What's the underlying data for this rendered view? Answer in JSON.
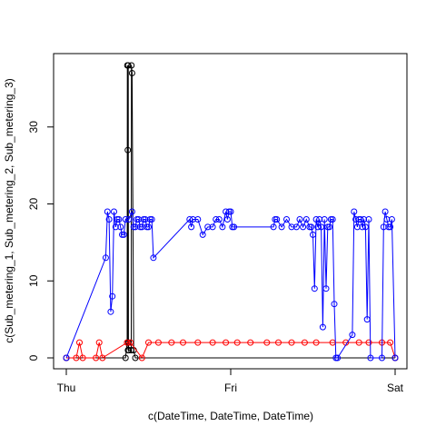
{
  "chart_data": {
    "type": "line",
    "title": "",
    "xlabel": "c(DateTime, DateTime, DateTime)",
    "ylabel": "c(Sub_metering_1, Sub_metering_2, Sub_metering_3)",
    "xlim": [
      0,
      2
    ],
    "ylim": [
      0,
      38
    ],
    "x_ticks": [
      {
        "value": 0,
        "label": "Thu"
      },
      {
        "value": 1,
        "label": "Fri"
      },
      {
        "value": 2,
        "label": "Sat"
      }
    ],
    "y_ticks": [
      0,
      10,
      20,
      30
    ],
    "grid": false,
    "legend": "none",
    "point_marker": "open-circle",
    "series": [
      {
        "name": "Sub_metering_1",
        "color": "#000000",
        "x": [
          0,
          0.36,
          0.37,
          0.371,
          0.374,
          0.375,
          0.377,
          0.378,
          0.38,
          0.395,
          0.396,
          0.4,
          0.41,
          0.42,
          2
        ],
        "y": [
          0,
          0,
          2,
          38,
          27,
          1,
          38,
          2,
          1,
          1,
          38,
          37,
          1,
          0,
          0
        ]
      },
      {
        "name": "Sub_metering_2",
        "color": "#ff0000",
        "x": [
          0,
          0.06,
          0.08,
          0.1,
          0.18,
          0.2,
          0.22,
          0.37,
          0.39,
          0.46,
          0.5,
          0.56,
          0.64,
          0.71,
          0.8,
          0.89,
          0.97,
          1.04,
          1.12,
          1.22,
          1.29,
          1.37,
          1.45,
          1.52,
          1.62,
          1.7,
          1.78,
          1.84,
          1.92,
          1.97,
          2
        ],
        "y": [
          0,
          0,
          2,
          0,
          0,
          2,
          0,
          2,
          2,
          0,
          2,
          2,
          2,
          2,
          2,
          2,
          2,
          2,
          2,
          2,
          2,
          2,
          2,
          2,
          2,
          2,
          2,
          2,
          2,
          2,
          0
        ]
      },
      {
        "name": "Sub_metering_3",
        "color": "#0000ff",
        "x": [
          0,
          0.24,
          0.25,
          0.26,
          0.27,
          0.28,
          0.29,
          0.3,
          0.31,
          0.32,
          0.33,
          0.34,
          0.35,
          0.36,
          0.38,
          0.4,
          0.41,
          0.42,
          0.43,
          0.44,
          0.45,
          0.46,
          0.47,
          0.48,
          0.49,
          0.5,
          0.51,
          0.52,
          0.53,
          0.75,
          0.76,
          0.77,
          0.8,
          0.83,
          0.86,
          0.89,
          0.91,
          0.93,
          0.95,
          0.97,
          0.98,
          0.99,
          1.0,
          1.01,
          1.02,
          1.26,
          1.27,
          1.28,
          1.31,
          1.34,
          1.37,
          1.4,
          1.42,
          1.44,
          1.46,
          1.48,
          1.49,
          1.5,
          1.51,
          1.52,
          1.53,
          1.54,
          1.55,
          1.56,
          1.57,
          1.58,
          1.59,
          1.6,
          1.61,
          1.62,
          1.63,
          1.64,
          1.65,
          1.74,
          1.75,
          1.76,
          1.77,
          1.78,
          1.79,
          1.8,
          1.81,
          1.82,
          1.83,
          1.84,
          1.85,
          1.92,
          1.93,
          1.94,
          1.95,
          1.96,
          1.97,
          1.98,
          2
        ],
        "y": [
          0,
          13,
          19,
          18,
          6,
          8,
          19,
          17,
          18,
          18,
          17,
          16,
          16,
          18,
          18,
          19,
          17,
          17,
          18,
          18,
          17,
          17,
          18,
          18,
          17,
          17,
          18,
          18,
          13,
          18,
          17,
          18,
          18,
          16,
          17,
          17,
          18,
          18,
          17,
          19,
          18,
          19,
          19,
          17,
          17,
          17,
          18,
          18,
          17,
          18,
          17,
          17,
          18,
          17,
          18,
          17,
          17,
          16,
          9,
          18,
          17,
          18,
          17,
          4,
          18,
          9,
          17,
          17,
          18,
          18,
          7,
          0,
          0,
          3,
          19,
          18,
          17,
          18,
          18,
          17,
          18,
          17,
          5,
          18,
          0,
          0,
          17,
          19,
          18,
          17,
          17,
          18,
          0
        ]
      }
    ]
  }
}
